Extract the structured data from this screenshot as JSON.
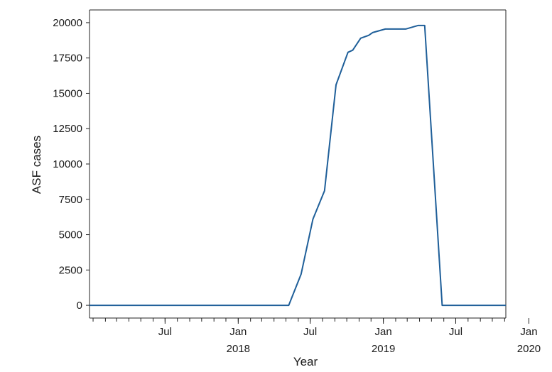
{
  "chart_data": {
    "type": "line",
    "xlabel": "Year",
    "ylabel": "ASF cases",
    "ylim": [
      -900,
      20900
    ],
    "xlim": [
      "2017-12-23",
      "2020-11-04"
    ],
    "yticks": [
      0,
      2500,
      5000,
      7500,
      10000,
      12500,
      15000,
      17500,
      20000
    ],
    "yticklabels": [
      "0",
      "2500",
      "5000",
      "7500",
      "10000",
      "12500",
      "15000",
      "17500",
      "20000"
    ],
    "xticks_major": [
      {
        "date": "2018-07-01",
        "label": "Jul",
        "year_label": ""
      },
      {
        "date": "2019-01-01",
        "label": "Jan",
        "year_label": "2018"
      },
      {
        "date": "2019-07-01",
        "label": "Jul",
        "year_label": ""
      },
      {
        "date": "2020-01-01",
        "label": "Jan",
        "year_label": "2019"
      },
      {
        "date": "2020-07-01",
        "label": "Jul",
        "year_label": ""
      },
      {
        "date": "2021-01-01",
        "label": "Jan",
        "year_label": "2020"
      }
    ],
    "grid": false,
    "legend": "none",
    "color": "#1f5f99",
    "x": [
      "2017-12-23",
      "2019-05-08",
      "2019-06-08",
      "2019-07-08",
      "2019-08-06",
      "2019-09-04",
      "2019-10-04",
      "2019-10-16",
      "2019-11-05",
      "2019-11-25",
      "2019-12-05",
      "2020-01-06",
      "2020-02-26",
      "2020-03-28",
      "2020-04-14",
      "2020-05-28",
      "2020-06-14",
      "2020-07-08",
      "2020-11-04"
    ],
    "y": [
      0,
      0,
      2200,
      6100,
      8100,
      15600,
      17900,
      18050,
      18900,
      19100,
      19300,
      19550,
      19550,
      19800,
      19800,
      0,
      0,
      0,
      0
    ]
  }
}
